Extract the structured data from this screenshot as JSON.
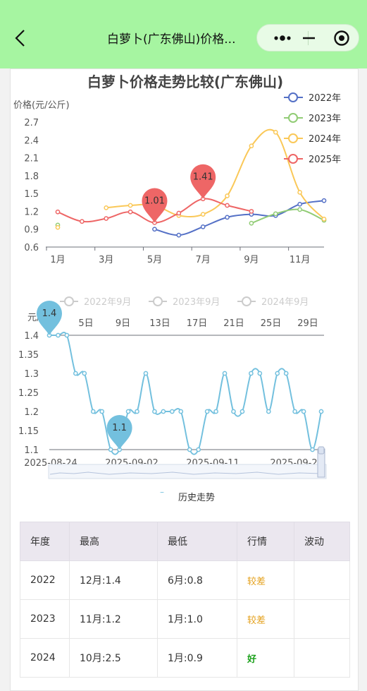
{
  "nav": {
    "title": "白萝卜(广东佛山)价格..."
  },
  "chart1": {
    "title": "白萝卜价格走势比较(广东佛山)",
    "ylabel": "价格(元/公斤)",
    "legend": [
      "2022年",
      "2023年",
      "2024年",
      "2025年"
    ],
    "pins": [
      {
        "label": "1.01"
      },
      {
        "label": "1.41"
      }
    ]
  },
  "chart2": {
    "legend": [
      "2022年9月",
      "2023年9月",
      "2024年9月"
    ],
    "ylabel": "元/公斤",
    "pins": [
      {
        "label": "1.4"
      },
      {
        "label": "1.1"
      }
    ],
    "series_legend": "历史走势"
  },
  "chart_data": [
    {
      "type": "line",
      "title": "白萝卜价格走势比较(广东佛山)",
      "ylabel": "价格(元/公斤)",
      "x_tick_labels": [
        "1月",
        "3月",
        "5月",
        "7月",
        "9月",
        "11月"
      ],
      "y_tick_labels": [
        "0.6",
        "0.9",
        "1.2",
        "1.5",
        "1.8",
        "2.1",
        "2.4",
        "2.7"
      ],
      "ylim": [
        0.6,
        2.7
      ],
      "legend_position": "right",
      "categories": [
        1,
        2,
        3,
        4,
        5,
        6,
        7,
        8,
        9,
        10,
        11,
        12
      ],
      "series": [
        {
          "name": "2022年",
          "color": "#5470c6",
          "values": [
            null,
            null,
            null,
            null,
            0.9,
            0.8,
            0.94,
            1.1,
            1.15,
            1.13,
            1.32,
            1.38
          ]
        },
        {
          "name": "2023年",
          "color": "#91cc75",
          "values": [
            0.97,
            null,
            null,
            null,
            null,
            null,
            null,
            null,
            1.0,
            1.16,
            1.23,
            1.05
          ]
        },
        {
          "name": "2024年",
          "color": "#fac858",
          "values": [
            0.93,
            null,
            1.26,
            1.3,
            1.3,
            1.13,
            1.15,
            1.46,
            2.3,
            2.53,
            1.52,
            1.07
          ]
        },
        {
          "name": "2025年",
          "color": "#ee6666",
          "values": [
            1.19,
            1.03,
            1.08,
            1.19,
            1.01,
            1.17,
            1.41,
            1.3,
            1.2,
            null,
            null,
            null
          ]
        }
      ]
    },
    {
      "type": "line",
      "series_legend": "历史走势",
      "ylabel": "元/公斤",
      "top_x_tick_labels": [
        "5日",
        "9日",
        "13日",
        "17日",
        "21日",
        "25日",
        "29日"
      ],
      "x_tick_labels": [
        "2025-08-24",
        "2025-09-02",
        "2025-09-11",
        "2025-09-2"
      ],
      "y_tick_labels": [
        "1.1",
        "1.15",
        "1.2",
        "1.25",
        "1.3",
        "1.35",
        "1.4"
      ],
      "ylim": [
        1.1,
        1.4
      ],
      "series": [
        {
          "name": "历史走势",
          "color": "#73c0de",
          "values": [
            1.4,
            1.4,
            1.4,
            1.3,
            1.3,
            1.2,
            1.2,
            1.1,
            1.1,
            1.2,
            1.2,
            1.3,
            1.2,
            1.2,
            1.2,
            1.2,
            1.1,
            1.1,
            1.2,
            1.2,
            1.3,
            1.2,
            1.2,
            1.3,
            1.3,
            1.2,
            1.3,
            1.3,
            1.2,
            1.2,
            1.1,
            1.2
          ]
        }
      ]
    }
  ],
  "table": {
    "headers": [
      "年度",
      "最高",
      "最低",
      "行情",
      "波动"
    ],
    "rows": [
      {
        "year": "2022",
        "high": "12月:1.4",
        "low": "6月:0.8",
        "trend": "较差",
        "vol": ""
      },
      {
        "year": "2023",
        "high": "11月:1.2",
        "low": "1月:1.0",
        "trend": "较差",
        "vol": ""
      },
      {
        "year": "2024",
        "high": "10月:2.5",
        "low": "1月:0.9",
        "trend": "好",
        "vol": ""
      }
    ]
  }
}
